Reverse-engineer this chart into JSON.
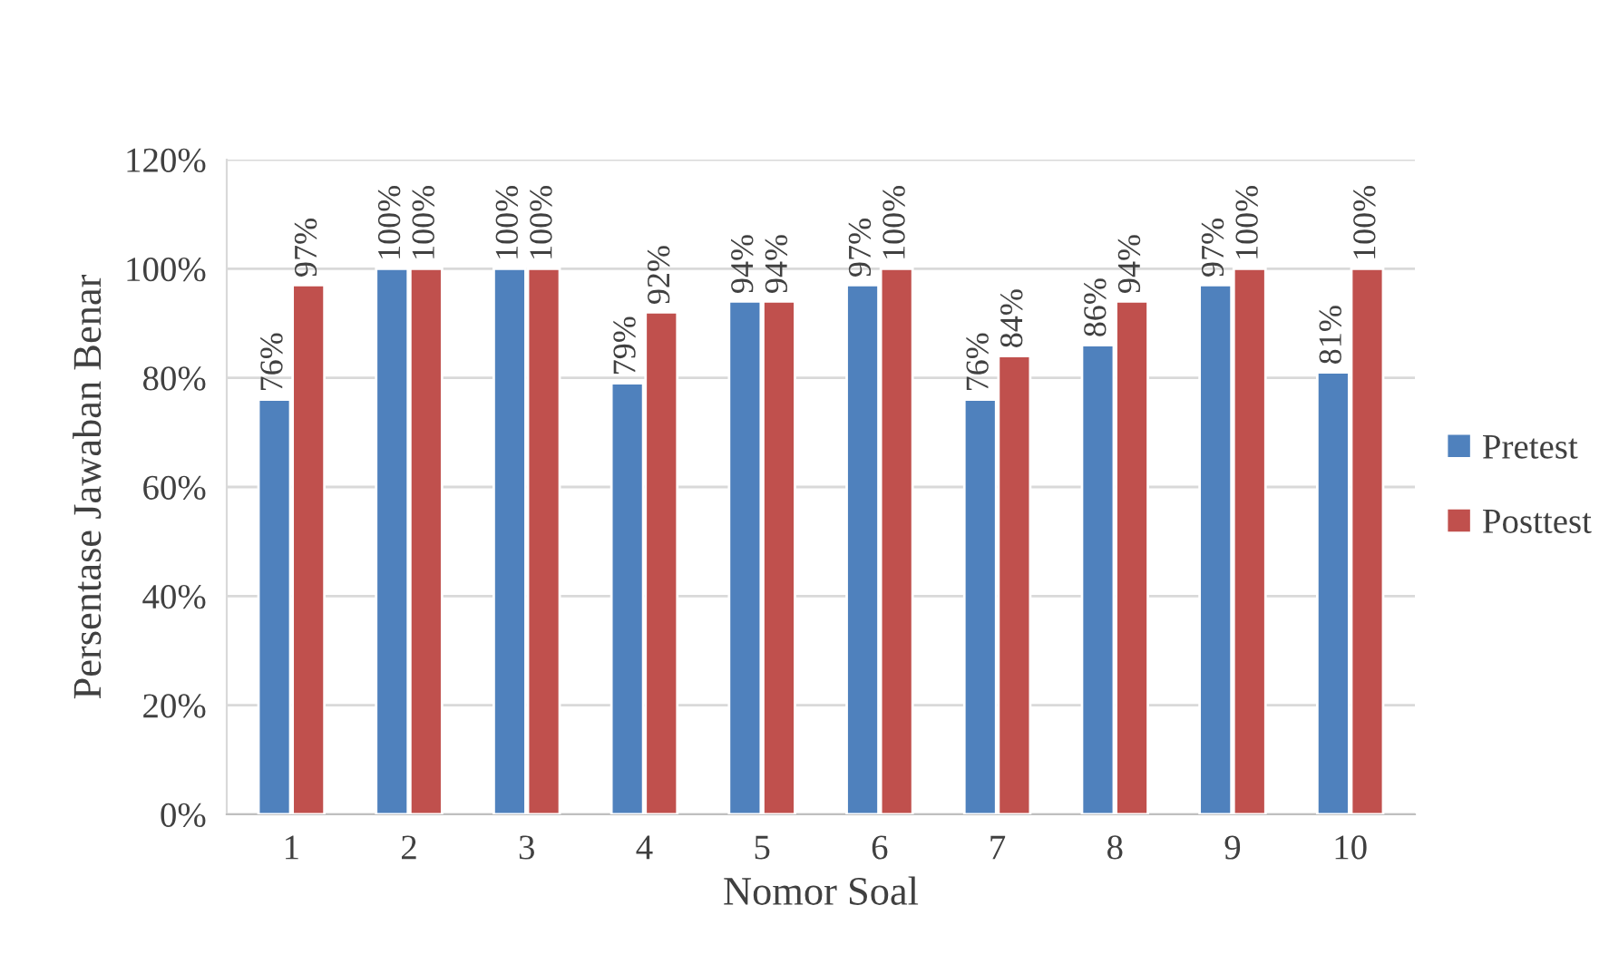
{
  "chart_data": {
    "type": "bar",
    "xlabel": "Nomor Soal",
    "ylabel": "Persentase Jawaban Benar",
    "categories": [
      "1",
      "2",
      "3",
      "4",
      "5",
      "6",
      "7",
      "8",
      "9",
      "10"
    ],
    "series": [
      {
        "name": "Pretest",
        "color": "#4f81bd",
        "values": [
          76,
          100,
          100,
          79,
          94,
          97,
          76,
          86,
          97,
          81
        ],
        "value_labels": [
          "76%",
          "100%",
          "100%",
          "79%",
          "94%",
          "97%",
          "76%",
          "86%",
          "97%",
          "81%"
        ]
      },
      {
        "name": "Posttest",
        "color": "#c0504d",
        "values": [
          97,
          100,
          100,
          92,
          94,
          100,
          84,
          94,
          100,
          100
        ],
        "value_labels": [
          "97%",
          "100%",
          "100%",
          "92%",
          "94%",
          "100%",
          "84%",
          "94%",
          "100%",
          "100%"
        ]
      }
    ],
    "ylim": [
      0,
      120
    ],
    "yticks": [
      {
        "value": 0,
        "label": "0%"
      },
      {
        "value": 20,
        "label": "20%"
      },
      {
        "value": 40,
        "label": "40%"
      },
      {
        "value": 60,
        "label": "60%"
      },
      {
        "value": 80,
        "label": "80%"
      },
      {
        "value": 100,
        "label": "100%"
      },
      {
        "value": 120,
        "label": "120%"
      }
    ],
    "grid": "y",
    "legend": "right"
  }
}
